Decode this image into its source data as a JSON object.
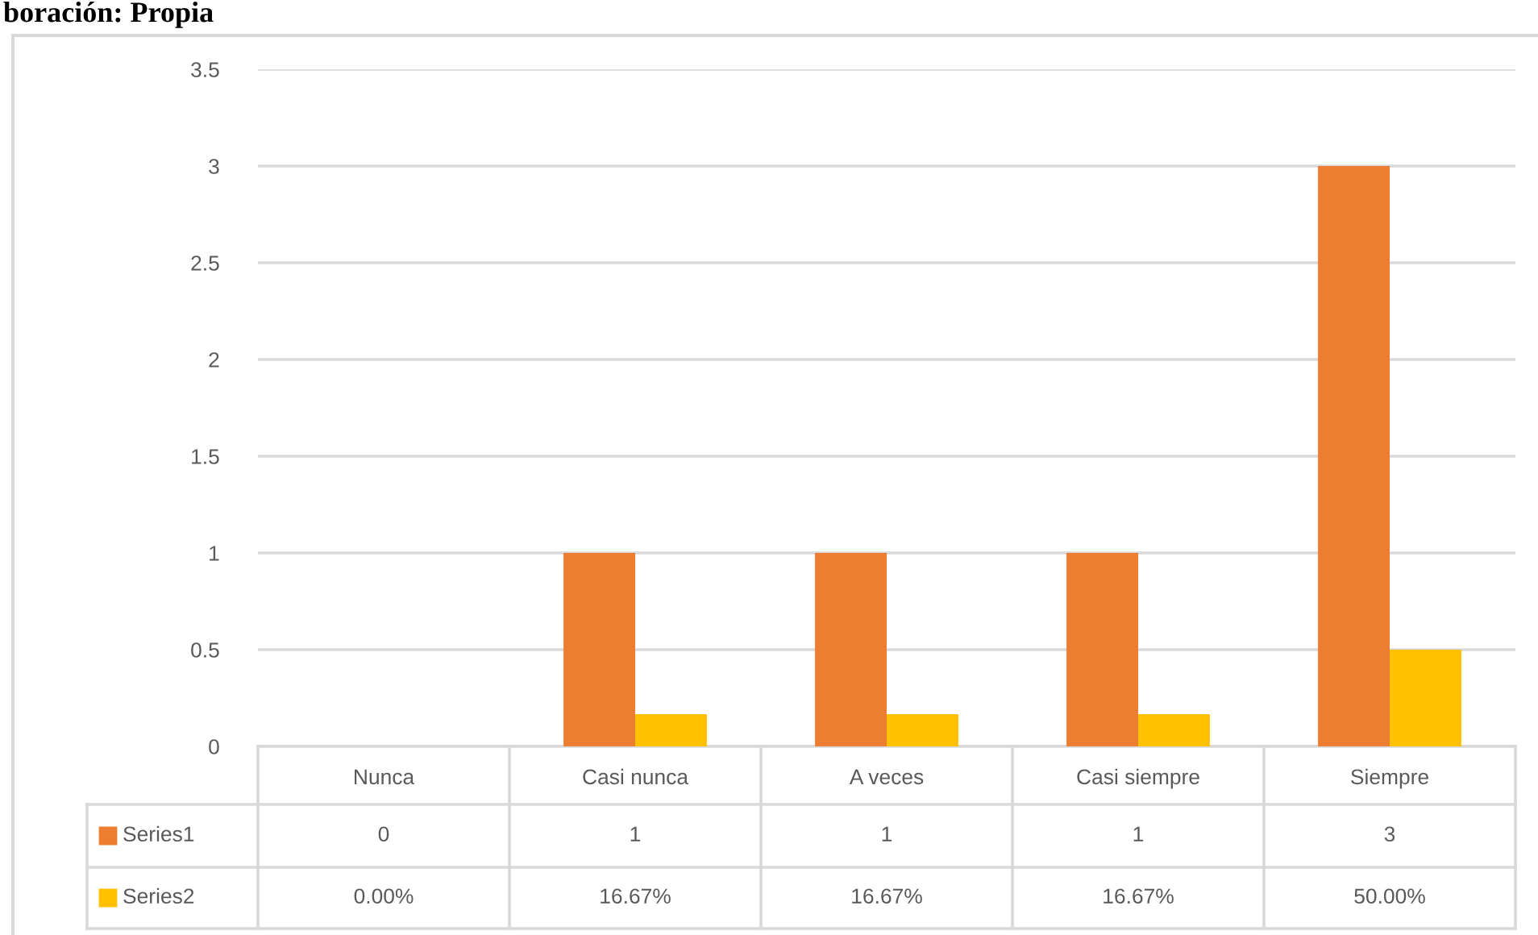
{
  "chart_data": {
    "type": "bar",
    "annotations": [
      "boración: Propia"
    ],
    "categories": [
      "Nunca",
      "Casi nunca",
      "A veces",
      "Casi siempre",
      "Siempre"
    ],
    "series": [
      {
        "name": "Series1",
        "color": "#ed7d31",
        "values": [
          0,
          1,
          1,
          1,
          3
        ],
        "value_labels": [
          "0",
          "1",
          "1",
          "1",
          "3"
        ]
      },
      {
        "name": "Series2",
        "color": "#ffc000",
        "values": [
          0,
          0.1667,
          0.1667,
          0.1667,
          0.5
        ],
        "value_labels": [
          "0.00%",
          "16.67%",
          "16.67%",
          "16.67%",
          "50.00%"
        ]
      }
    ],
    "ylim": [
      0,
      3.5
    ],
    "yticks": [
      0,
      0.5,
      1,
      1.5,
      2,
      2.5,
      3,
      3.5
    ],
    "grid": "y",
    "legend": "bottom"
  }
}
